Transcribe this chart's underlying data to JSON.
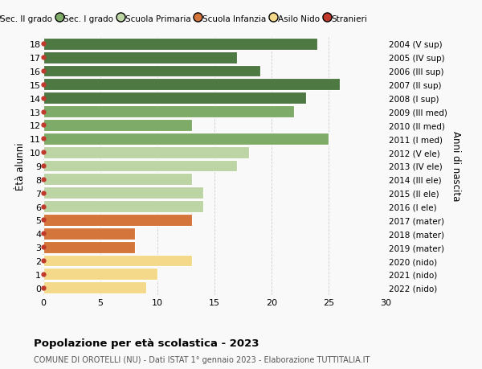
{
  "ages": [
    18,
    17,
    16,
    15,
    14,
    13,
    12,
    11,
    10,
    9,
    8,
    7,
    6,
    5,
    4,
    3,
    2,
    1,
    0
  ],
  "values": [
    24,
    17,
    19,
    26,
    23,
    22,
    13,
    25,
    18,
    17,
    13,
    14,
    14,
    13,
    8,
    8,
    13,
    10,
    9
  ],
  "right_labels": [
    "2004 (V sup)",
    "2005 (IV sup)",
    "2006 (III sup)",
    "2007 (II sup)",
    "2008 (I sup)",
    "2009 (III med)",
    "2010 (II med)",
    "2011 (I med)",
    "2012 (V ele)",
    "2013 (IV ele)",
    "2014 (III ele)",
    "2015 (II ele)",
    "2016 (I ele)",
    "2017 (mater)",
    "2018 (mater)",
    "2019 (mater)",
    "2020 (nido)",
    "2021 (nido)",
    "2022 (nido)"
  ],
  "bar_colors": [
    "#4f7942",
    "#4f7942",
    "#4f7942",
    "#4f7942",
    "#4f7942",
    "#7fab68",
    "#7fab68",
    "#7fab68",
    "#bdd4a4",
    "#bdd4a4",
    "#bdd4a4",
    "#bdd4a4",
    "#bdd4a4",
    "#d4763b",
    "#d4763b",
    "#d4763b",
    "#f5d98b",
    "#f5d98b",
    "#f5d98b"
  ],
  "legend_labels": [
    "Sec. II grado",
    "Sec. I grado",
    "Scuola Primaria",
    "Scuola Infanzia",
    "Asilo Nido",
    "Stranieri"
  ],
  "legend_colors": [
    "#4f7942",
    "#7fab68",
    "#bdd4a4",
    "#d4763b",
    "#f5d98b",
    "#c0392b"
  ],
  "stranieri_marker_color": "#c0392b",
  "ylabel_text": "Ètà alunni",
  "right_ylabel_text": "Anni di nascita",
  "title": "Popolazione per età scolastica - 2023",
  "subtitle": "COMUNE DI OROTELLI (NU) - Dati ISTAT 1° gennaio 2023 - Elaborazione TUTTITALIA.IT",
  "xlim": [
    0,
    30
  ],
  "xticks": [
    0,
    5,
    10,
    15,
    20,
    25,
    30
  ],
  "background_color": "#f9f9f9",
  "grid_color": "#cccccc",
  "bar_edge_color": "#ffffff",
  "bar_height": 0.88
}
